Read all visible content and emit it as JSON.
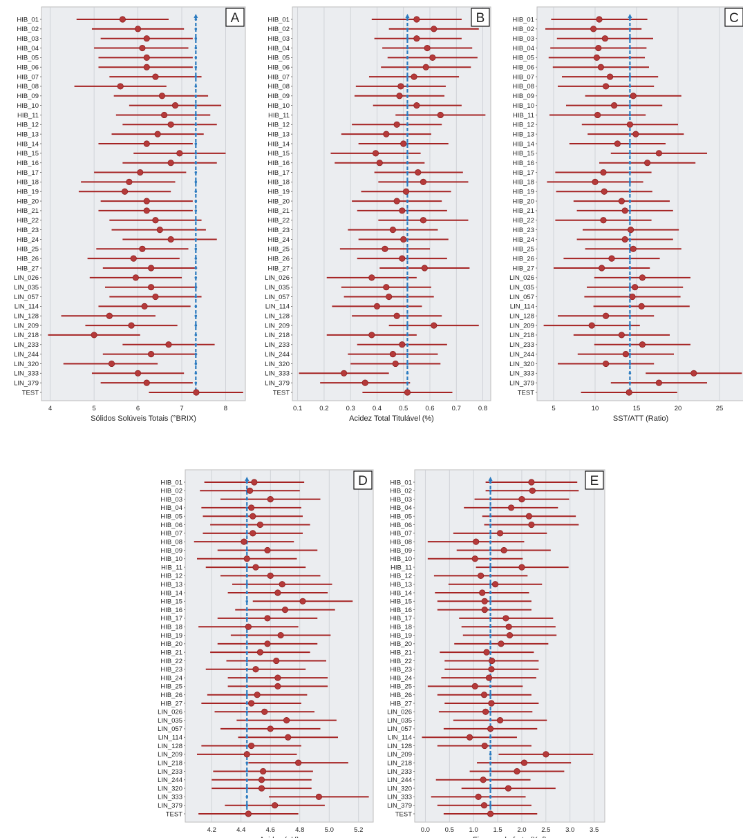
{
  "chart_data": [
    {
      "type": "errorbar",
      "panel_label": "A",
      "xlabel": "Sólidos Solúveis Totais (°BRIX)",
      "xlim": [
        3.8,
        8.45
      ],
      "xticks": [
        "4",
        "5",
        "6",
        "7",
        "8"
      ],
      "reference_value": 7.32,
      "categories": [
        "HIB_01",
        "HIB_02",
        "HIB_03",
        "HIB_04",
        "HIB_05",
        "HIB_06",
        "HIB_07",
        "HIB_08",
        "HIB_09",
        "HIB_10",
        "HIB_11",
        "HIB_12",
        "HIB_13",
        "HIB_14",
        "HIB_15",
        "HIB_16",
        "HIB_17",
        "HIB_18",
        "HIB_19",
        "HIB_20",
        "HIB_21",
        "HIB_22",
        "HIB_23",
        "HIB_24",
        "HIB_25",
        "HIB_26",
        "HIB_27",
        "LIN_026",
        "LIN_035",
        "LIN_057",
        "LIN_114",
        "LIN_128",
        "LIN_209",
        "LIN_218",
        "LIN_233",
        "LIN_244",
        "LIN_320",
        "LIN_333",
        "LIN_379",
        "TEST"
      ],
      "series": [
        {
          "mean": [
            5.65,
            6.0,
            6.2,
            6.1,
            6.2,
            6.2,
            6.4,
            5.6,
            6.55,
            6.85,
            6.6,
            6.75,
            6.45,
            6.2,
            6.95,
            6.75,
            6.05,
            5.8,
            5.7,
            6.2,
            6.2,
            6.4,
            6.5,
            6.75,
            6.1,
            5.9,
            6.3,
            5.95,
            6.3,
            6.4,
            6.15,
            5.35,
            5.85,
            5.0,
            6.7,
            6.3,
            5.4,
            6.0,
            6.2,
            7.33
          ],
          "lower": [
            4.6,
            4.95,
            5.15,
            5.0,
            5.1,
            5.1,
            5.35,
            4.55,
            5.45,
            5.8,
            5.5,
            5.65,
            5.4,
            5.1,
            5.9,
            5.65,
            5.0,
            4.7,
            4.65,
            5.15,
            5.1,
            5.35,
            5.4,
            5.65,
            5.05,
            4.85,
            5.2,
            4.9,
            5.25,
            5.35,
            5.1,
            4.25,
            4.8,
            3.95,
            5.65,
            5.2,
            4.3,
            4.95,
            5.15,
            6.25
          ],
          "upper": [
            6.7,
            7.05,
            7.25,
            7.15,
            7.25,
            7.25,
            7.45,
            6.65,
            7.6,
            7.9,
            7.65,
            7.8,
            7.5,
            7.25,
            8.0,
            7.8,
            7.1,
            6.85,
            6.75,
            7.25,
            7.25,
            7.45,
            7.55,
            7.8,
            7.15,
            6.95,
            7.35,
            7.0,
            7.35,
            7.45,
            7.2,
            6.4,
            6.9,
            6.05,
            7.75,
            7.35,
            6.45,
            7.05,
            7.25,
            8.4
          ]
        }
      ]
    },
    {
      "type": "errorbar",
      "panel_label": "B",
      "xlabel": "Acidez Total Titulável (%)",
      "xlim": [
        0.08,
        0.83
      ],
      "xticks": [
        "0.1",
        "0.2",
        "0.3",
        "0.4",
        "0.5",
        "0.6",
        "0.7",
        "0.8"
      ],
      "reference_value": 0.515,
      "categories": [
        "HIB_01",
        "HIB_02",
        "HIB_03",
        "HIB_04",
        "HIB_05",
        "HIB_06",
        "HIB_07",
        "HIB_08",
        "HIB_09",
        "HIB_10",
        "HIB_11",
        "HIB_12",
        "HIB_13",
        "HIB_14",
        "HIB_15",
        "HIB_16",
        "HIB_17",
        "HIB_18",
        "HIB_19",
        "HIB_20",
        "HIB_21",
        "HIB_22",
        "HIB_23",
        "HIB_24",
        "HIB_25",
        "HIB_26",
        "HIB_27",
        "LIN_026",
        "LIN_035",
        "LIN_057",
        "LIN_114",
        "LIN_128",
        "LIN_209",
        "LIN_218",
        "LIN_233",
        "LIN_244",
        "LIN_320",
        "LIN_333",
        "LIN_379",
        "TEST"
      ],
      "series": [
        {
          "mean": [
            0.55,
            0.615,
            0.55,
            0.59,
            0.61,
            0.585,
            0.54,
            0.49,
            0.485,
            0.55,
            0.64,
            0.475,
            0.435,
            0.5,
            0.395,
            0.41,
            0.555,
            0.575,
            0.51,
            0.475,
            0.495,
            0.575,
            0.46,
            0.5,
            0.43,
            0.495,
            0.58,
            0.38,
            0.435,
            0.445,
            0.4,
            0.475,
            0.615,
            0.38,
            0.495,
            0.46,
            0.47,
            0.275,
            0.355,
            0.515
          ],
          "lower": [
            0.38,
            0.445,
            0.39,
            0.42,
            0.44,
            0.415,
            0.37,
            0.32,
            0.315,
            0.385,
            0.47,
            0.305,
            0.265,
            0.33,
            0.225,
            0.24,
            0.39,
            0.405,
            0.34,
            0.305,
            0.325,
            0.405,
            0.29,
            0.33,
            0.26,
            0.325,
            0.41,
            0.21,
            0.265,
            0.275,
            0.23,
            0.305,
            0.445,
            0.21,
            0.325,
            0.29,
            0.3,
            0.105,
            0.185,
            0.345
          ],
          "upper": [
            0.72,
            0.785,
            0.72,
            0.76,
            0.78,
            0.755,
            0.71,
            0.66,
            0.655,
            0.72,
            0.81,
            0.645,
            0.605,
            0.67,
            0.565,
            0.58,
            0.725,
            0.745,
            0.68,
            0.645,
            0.665,
            0.745,
            0.63,
            0.67,
            0.6,
            0.665,
            0.75,
            0.55,
            0.605,
            0.615,
            0.57,
            0.645,
            0.785,
            0.55,
            0.665,
            0.63,
            0.64,
            0.445,
            0.525,
            0.685
          ]
        }
      ]
    },
    {
      "type": "errorbar",
      "panel_label": "C",
      "xlabel": "SST/ATT (Ratio)",
      "xlim": [
        3.0,
        28.0
      ],
      "xticks": [
        "5",
        "10",
        "15",
        "20",
        "25"
      ],
      "reference_value": 14.2,
      "categories": [
        "HIB_01",
        "HIB_02",
        "HIB_03",
        "HIB_04",
        "HIB_05",
        "HIB_06",
        "HIB_07",
        "HIB_08",
        "HIB_09",
        "HIB_10",
        "HIB_11",
        "HIB_12",
        "HIB_13",
        "HIB_14",
        "HIB_15",
        "HIB_16",
        "HIB_17",
        "HIB_18",
        "HIB_19",
        "HIB_20",
        "HIB_21",
        "HIB_22",
        "HIB_23",
        "HIB_24",
        "HIB_25",
        "HIB_26",
        "HIB_27",
        "LIN_026",
        "LIN_035",
        "LIN_057",
        "LIN_114",
        "LIN_128",
        "LIN_209",
        "LIN_218",
        "LIN_233",
        "LIN_244",
        "LIN_320",
        "LIN_333",
        "LIN_379",
        "TEST"
      ],
      "series": [
        {
          "mean": [
            10.5,
            9.8,
            11.2,
            10.4,
            10.2,
            10.7,
            11.8,
            11.3,
            14.6,
            12.3,
            10.3,
            14.2,
            14.9,
            12.7,
            17.7,
            16.3,
            11.0,
            10.0,
            11.1,
            13.2,
            13.6,
            11.0,
            14.3,
            13.6,
            14.6,
            12.0,
            10.8,
            15.7,
            14.8,
            14.5,
            15.6,
            11.3,
            9.6,
            13.2,
            15.7,
            13.7,
            11.3,
            21.9,
            17.7,
            14.1
          ],
          "lower": [
            4.7,
            4.0,
            5.4,
            4.6,
            4.4,
            4.9,
            6.0,
            5.5,
            8.8,
            6.5,
            4.5,
            8.4,
            9.1,
            6.9,
            11.9,
            10.5,
            5.2,
            4.2,
            5.3,
            7.4,
            7.8,
            5.2,
            8.5,
            7.8,
            8.8,
            6.2,
            5.0,
            9.9,
            9.0,
            8.7,
            9.8,
            5.5,
            3.8,
            7.4,
            9.9,
            7.9,
            5.5,
            16.1,
            11.9,
            8.3
          ],
          "upper": [
            16.3,
            15.6,
            17.0,
            16.2,
            16.0,
            16.5,
            17.6,
            17.1,
            20.4,
            18.1,
            16.1,
            20.0,
            20.7,
            18.5,
            23.5,
            22.1,
            16.8,
            15.8,
            16.9,
            19.0,
            19.4,
            16.8,
            20.1,
            19.4,
            20.4,
            17.8,
            16.6,
            21.5,
            20.6,
            20.3,
            21.4,
            17.1,
            15.4,
            19.0,
            21.5,
            19.5,
            17.1,
            27.7,
            23.5,
            19.9
          ]
        }
      ]
    },
    {
      "type": "errorbar",
      "panel_label": "D",
      "xlabel": "Acidez (pH)",
      "xlim": [
        4.02,
        5.3
      ],
      "xticks": [
        "4.2",
        "4.4",
        "4.6",
        "4.8",
        "5.0",
        "5.2"
      ],
      "reference_value": 4.44,
      "categories": [
        "HIB_01",
        "HIB_02",
        "HIB_03",
        "HIB_04",
        "HIB_05",
        "HIB_06",
        "HIB_07",
        "HIB_08",
        "HIB_09",
        "HIB_10",
        "HIB_11",
        "HIB_12",
        "HIB_13",
        "HIB_14",
        "HIB_15",
        "HIB_16",
        "HIB_17",
        "HIB_18",
        "HIB_19",
        "HIB_20",
        "HIB_21",
        "HIB_22",
        "HIB_23",
        "HIB_24",
        "HIB_25",
        "HIB_26",
        "HIB_27",
        "LIN_026",
        "LIN_035",
        "LIN_057",
        "LIN_114",
        "LIN_128",
        "LIN_209",
        "LIN_218",
        "LIN_233",
        "LIN_244",
        "LIN_320",
        "LIN_333",
        "LIN_379",
        "TEST"
      ],
      "series": [
        {
          "mean": [
            4.49,
            4.46,
            4.6,
            4.47,
            4.48,
            4.53,
            4.48,
            4.42,
            4.58,
            4.44,
            4.5,
            4.6,
            4.68,
            4.65,
            4.82,
            4.7,
            4.58,
            4.45,
            4.67,
            4.58,
            4.53,
            4.64,
            4.5,
            4.65,
            4.65,
            4.51,
            4.47,
            4.56,
            4.71,
            4.6,
            4.72,
            4.47,
            4.44,
            4.79,
            4.55,
            4.54,
            4.54,
            4.93,
            4.63,
            4.45
          ],
          "lower": [
            4.15,
            4.12,
            4.26,
            4.13,
            4.14,
            4.19,
            4.14,
            4.08,
            4.24,
            4.1,
            4.16,
            4.26,
            4.34,
            4.31,
            4.48,
            4.36,
            4.24,
            4.11,
            4.33,
            4.24,
            4.19,
            4.3,
            4.16,
            4.31,
            4.31,
            4.17,
            4.13,
            4.22,
            4.37,
            4.26,
            4.38,
            4.13,
            4.1,
            4.45,
            4.21,
            4.2,
            4.2,
            4.59,
            4.29,
            4.11
          ],
          "upper": [
            4.83,
            4.8,
            4.94,
            4.81,
            4.82,
            4.87,
            4.82,
            4.76,
            4.92,
            4.78,
            4.84,
            4.94,
            5.02,
            4.99,
            5.16,
            5.04,
            4.92,
            4.79,
            5.01,
            4.92,
            4.87,
            4.98,
            4.84,
            4.99,
            4.99,
            4.85,
            4.81,
            4.9,
            5.05,
            4.94,
            5.06,
            4.81,
            4.78,
            5.13,
            4.89,
            4.88,
            4.88,
            5.27,
            4.97,
            4.79
          ]
        }
      ]
    },
    {
      "type": "errorbar",
      "panel_label": "E",
      "xlabel": "Firmeza do fruto (Kgf)",
      "xlim": [
        -0.22,
        3.72
      ],
      "xticks": [
        "0.0",
        "0.5",
        "1.0",
        "1.5",
        "2.0",
        "2.5",
        "3.0",
        "3.5"
      ],
      "reference_value": 1.35,
      "categories": [
        "HIB_01",
        "HIB_02",
        "HIB_03",
        "HIB_04",
        "HIB_05",
        "HIB_06",
        "HIB_07",
        "HIB_08",
        "HIB_09",
        "HIB_10",
        "HIB_11",
        "HIB_12",
        "HIB_13",
        "HIB_14",
        "HIB_15",
        "HIB_16",
        "HIB_17",
        "HIB_18",
        "HIB_19",
        "HIB_20",
        "HIB_21",
        "HIB_22",
        "HIB_23",
        "HIB_24",
        "HIB_25",
        "HIB_26",
        "HIB_27",
        "LIN_026",
        "LIN_035",
        "LIN_057",
        "LIN_114",
        "LIN_128",
        "LIN_209",
        "LIN_218",
        "LIN_233",
        "LIN_244",
        "LIN_320",
        "LIN_333",
        "LIN_379",
        "TEST"
      ],
      "series": [
        {
          "mean": [
            2.2,
            2.22,
            2.0,
            1.78,
            2.15,
            2.2,
            1.55,
            1.05,
            1.63,
            1.03,
            2.0,
            1.15,
            1.45,
            1.18,
            1.23,
            1.23,
            1.67,
            1.73,
            1.75,
            1.57,
            1.27,
            1.38,
            1.37,
            1.32,
            1.03,
            1.22,
            1.37,
            1.25,
            1.55,
            1.35,
            0.92,
            1.23,
            2.5,
            2.05,
            1.9,
            1.2,
            1.72,
            1.1,
            1.22,
            1.35
          ],
          "lower": [
            1.25,
            1.25,
            1.02,
            0.8,
            1.18,
            1.22,
            0.58,
            0.05,
            0.65,
            0.05,
            1.05,
            0.18,
            0.48,
            0.2,
            0.25,
            0.25,
            0.7,
            0.75,
            0.78,
            0.6,
            0.3,
            0.4,
            0.4,
            0.33,
            0.05,
            0.25,
            0.4,
            0.28,
            0.58,
            0.38,
            -0.07,
            0.25,
            1.52,
            1.07,
            0.92,
            0.22,
            0.75,
            0.12,
            0.25,
            0.38
          ],
          "upper": [
            3.15,
            3.18,
            2.98,
            2.75,
            3.12,
            3.18,
            2.52,
            2.05,
            2.6,
            2.02,
            2.97,
            2.12,
            2.42,
            2.15,
            2.2,
            2.2,
            2.65,
            2.7,
            2.72,
            2.55,
            2.25,
            2.35,
            2.35,
            2.3,
            2.02,
            2.2,
            2.35,
            2.22,
            2.52,
            2.32,
            1.9,
            2.2,
            3.48,
            3.02,
            2.88,
            2.18,
            2.7,
            2.08,
            2.2,
            2.32
          ]
        }
      ]
    }
  ]
}
